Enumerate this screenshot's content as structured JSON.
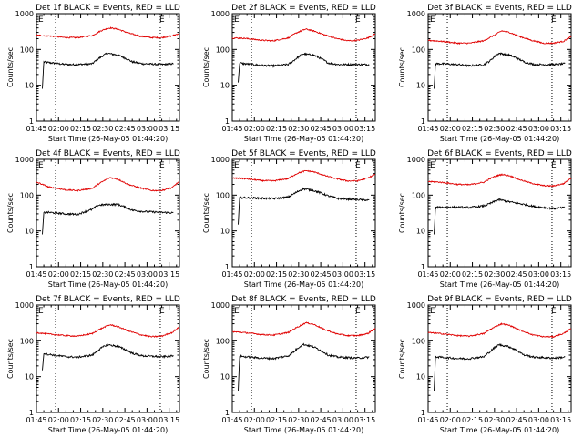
{
  "figure": {
    "colors": {
      "events": "#000000",
      "lld": "#e00000",
      "axes": "#000000",
      "marker": "#000000"
    },
    "xlabel": "Start Time (26-May-05 01:44:20)",
    "ylabel": "Counts/sec",
    "xtick_labels": [
      "01:45",
      "02:00",
      "02:15",
      "02:30",
      "02:45",
      "03:00",
      "03:15"
    ],
    "ytick_labels": [
      "1",
      "10",
      "100",
      "1000"
    ]
  },
  "chart_data": [
    {
      "type": "line",
      "title": "Det 1f BLACK = Events, RED = LLD",
      "yscale": "log",
      "x_unit": "minutes after 01:45",
      "xlim": [
        0,
        97
      ],
      "ylim": [
        1,
        1000
      ],
      "dotted_markers_x": [
        13,
        84
      ],
      "series": [
        {
          "name": "Events",
          "x": [
            4,
            5,
            8,
            20,
            28,
            38,
            42,
            48,
            55,
            65,
            72,
            85,
            93
          ],
          "values": [
            8,
            45,
            43,
            38,
            38,
            40,
            55,
            78,
            70,
            45,
            40,
            38,
            40
          ]
        },
        {
          "name": "LLD",
          "x": [
            0,
            8,
            20,
            28,
            38,
            45,
            50,
            55,
            62,
            70,
            78,
            85,
            92,
            97
          ],
          "values": [
            250,
            240,
            215,
            215,
            245,
            350,
            400,
            370,
            290,
            235,
            215,
            215,
            240,
            280
          ]
        }
      ]
    },
    {
      "type": "line",
      "title": "Det 2f BLACK = Events, RED = LLD",
      "yscale": "log",
      "x_unit": "minutes after 01:45",
      "xlim": [
        0,
        97
      ],
      "ylim": [
        1,
        1000
      ],
      "dotted_markers_x": [
        13,
        84
      ],
      "series": [
        {
          "name": "Events",
          "x": [
            4,
            5,
            8,
            20,
            28,
            38,
            42,
            48,
            55,
            65,
            72,
            85,
            93
          ],
          "values": [
            12,
            42,
            40,
            36,
            35,
            38,
            50,
            75,
            70,
            42,
            38,
            38,
            38
          ]
        },
        {
          "name": "LLD",
          "x": [
            0,
            8,
            20,
            28,
            38,
            45,
            50,
            55,
            62,
            70,
            78,
            85,
            92,
            97
          ],
          "values": [
            210,
            205,
            180,
            175,
            210,
            310,
            370,
            330,
            260,
            205,
            175,
            180,
            210,
            270
          ]
        }
      ]
    },
    {
      "type": "line",
      "title": "Det 3f BLACK = Events, RED = LLD",
      "yscale": "log",
      "x_unit": "minutes after 01:45",
      "xlim": [
        0,
        97
      ],
      "ylim": [
        1,
        1000
      ],
      "dotted_markers_x": [
        13,
        84
      ],
      "series": [
        {
          "name": "Events",
          "x": [
            4,
            5,
            8,
            20,
            28,
            38,
            42,
            48,
            55,
            65,
            72,
            85,
            93
          ],
          "values": [
            8,
            40,
            40,
            38,
            35,
            38,
            48,
            78,
            70,
            45,
            38,
            38,
            40
          ]
        },
        {
          "name": "LLD",
          "x": [
            0,
            8,
            20,
            28,
            38,
            45,
            50,
            55,
            62,
            70,
            78,
            85,
            92,
            97
          ],
          "values": [
            180,
            170,
            150,
            150,
            175,
            250,
            330,
            300,
            230,
            180,
            150,
            150,
            170,
            230
          ]
        }
      ]
    },
    {
      "type": "line",
      "title": "Det 4f BLACK = Events, RED = LLD",
      "yscale": "log",
      "x_unit": "minutes after 01:45",
      "xlim": [
        0,
        97
      ],
      "ylim": [
        1,
        1000
      ],
      "dotted_markers_x": [
        13,
        84
      ],
      "series": [
        {
          "name": "Events",
          "x": [
            4,
            5,
            8,
            20,
            28,
            38,
            42,
            48,
            55,
            65,
            72,
            85,
            93
          ],
          "values": [
            8,
            32,
            33,
            30,
            29,
            40,
            52,
            55,
            55,
            38,
            35,
            33,
            32
          ]
        },
        {
          "name": "LLD",
          "x": [
            0,
            8,
            20,
            28,
            38,
            45,
            50,
            55,
            62,
            70,
            78,
            85,
            92,
            97
          ],
          "values": [
            230,
            170,
            140,
            135,
            155,
            240,
            310,
            280,
            200,
            160,
            135,
            135,
            160,
            240
          ]
        }
      ]
    },
    {
      "type": "line",
      "title": "Det 5f BLACK = Events, RED = LLD",
      "yscale": "log",
      "x_unit": "minutes after 01:45",
      "xlim": [
        0,
        97
      ],
      "ylim": [
        1,
        1000
      ],
      "dotted_markers_x": [
        13,
        84
      ],
      "series": [
        {
          "name": "Events",
          "x": [
            4,
            5,
            8,
            20,
            28,
            38,
            42,
            48,
            55,
            65,
            72,
            85,
            93
          ],
          "values": [
            15,
            85,
            85,
            82,
            80,
            88,
            110,
            150,
            135,
            95,
            80,
            75,
            72
          ]
        },
        {
          "name": "LLD",
          "x": [
            0,
            8,
            20,
            28,
            38,
            45,
            50,
            55,
            62,
            70,
            78,
            85,
            92,
            97
          ],
          "values": [
            300,
            290,
            255,
            250,
            290,
            420,
            480,
            450,
            360,
            290,
            250,
            250,
            300,
            380
          ]
        }
      ]
    },
    {
      "type": "line",
      "title": "Det 6f BLACK = Events, RED = LLD",
      "yscale": "log",
      "x_unit": "minutes after 01:45",
      "xlim": [
        0,
        97
      ],
      "ylim": [
        1,
        1000
      ],
      "dotted_markers_x": [
        13,
        84
      ],
      "series": [
        {
          "name": "Events",
          "x": [
            4,
            5,
            8,
            20,
            28,
            38,
            42,
            48,
            55,
            65,
            72,
            85,
            93
          ],
          "values": [
            8,
            45,
            46,
            46,
            45,
            50,
            58,
            75,
            65,
            55,
            48,
            42,
            45
          ]
        },
        {
          "name": "LLD",
          "x": [
            0,
            8,
            20,
            28,
            38,
            45,
            50,
            55,
            62,
            70,
            78,
            85,
            92,
            97
          ],
          "values": [
            240,
            230,
            200,
            195,
            230,
            330,
            380,
            350,
            270,
            215,
            185,
            180,
            210,
            300
          ]
        }
      ]
    },
    {
      "type": "line",
      "title": "Det 7f BLACK = Events, RED = LLD",
      "yscale": "log",
      "x_unit": "minutes after 01:45",
      "xlim": [
        0,
        97
      ],
      "ylim": [
        1,
        1000
      ],
      "dotted_markers_x": [
        13,
        84
      ],
      "series": [
        {
          "name": "Events",
          "x": [
            4,
            5,
            8,
            20,
            28,
            38,
            42,
            48,
            55,
            65,
            72,
            85,
            93
          ],
          "values": [
            15,
            45,
            42,
            36,
            35,
            40,
            55,
            78,
            70,
            45,
            38,
            36,
            38
          ]
        },
        {
          "name": "LLD",
          "x": [
            0,
            8,
            20,
            28,
            38,
            45,
            50,
            55,
            62,
            70,
            78,
            85,
            92,
            97
          ],
          "values": [
            170,
            155,
            140,
            135,
            160,
            230,
            280,
            250,
            190,
            150,
            130,
            135,
            170,
            240
          ]
        }
      ]
    },
    {
      "type": "line",
      "title": "Det 8f BLACK = Events, RED = LLD",
      "yscale": "log",
      "x_unit": "minutes after 01:45",
      "xlim": [
        0,
        97
      ],
      "ylim": [
        1,
        1000
      ],
      "dotted_markers_x": [
        13,
        84
      ],
      "series": [
        {
          "name": "Events",
          "x": [
            4,
            5,
            8,
            20,
            28,
            38,
            42,
            48,
            55,
            65,
            72,
            85,
            93
          ],
          "values": [
            4,
            38,
            36,
            33,
            32,
            38,
            50,
            80,
            68,
            40,
            35,
            33,
            35
          ]
        },
        {
          "name": "LLD",
          "x": [
            0,
            8,
            20,
            28,
            38,
            45,
            50,
            55,
            62,
            70,
            78,
            85,
            92,
            97
          ],
          "values": [
            180,
            170,
            150,
            145,
            170,
            250,
            320,
            290,
            210,
            160,
            140,
            140,
            160,
            220
          ]
        }
      ]
    },
    {
      "type": "line",
      "title": "Det 9f BLACK = Events, RED = LLD",
      "yscale": "log",
      "x_unit": "minutes after 01:45",
      "xlim": [
        0,
        97
      ],
      "ylim": [
        1,
        1000
      ],
      "dotted_markers_x": [
        13,
        84
      ],
      "series": [
        {
          "name": "Events",
          "x": [
            4,
            5,
            8,
            20,
            28,
            38,
            42,
            48,
            55,
            65,
            72,
            85,
            93
          ],
          "values": [
            4,
            36,
            35,
            32,
            32,
            36,
            50,
            78,
            68,
            40,
            35,
            33,
            35
          ]
        },
        {
          "name": "LLD",
          "x": [
            0,
            8,
            20,
            28,
            38,
            45,
            50,
            55,
            62,
            70,
            78,
            85,
            92,
            97
          ],
          "values": [
            170,
            160,
            140,
            135,
            160,
            240,
            300,
            270,
            200,
            150,
            130,
            130,
            160,
            220
          ]
        }
      ]
    }
  ]
}
